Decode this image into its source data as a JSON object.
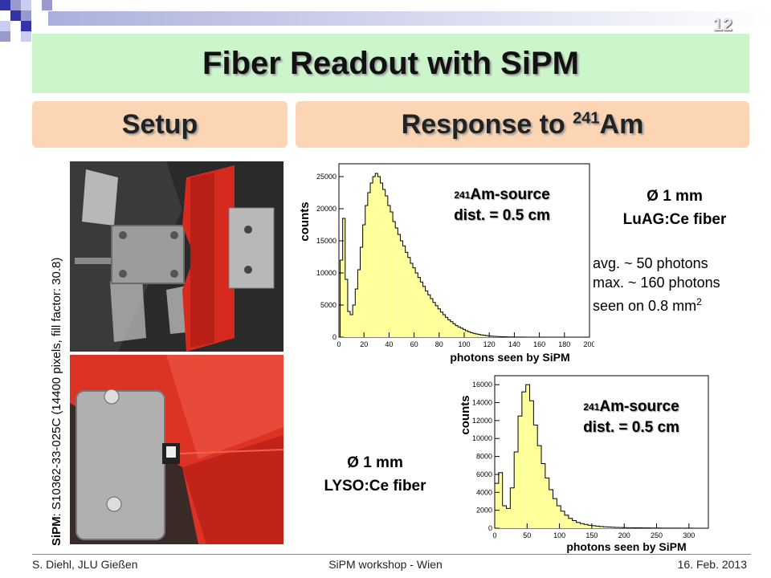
{
  "slide_number": "12",
  "title": "Fiber Readout with SiPM",
  "setup_header": "Setup",
  "response_header": {
    "prefix": "Response to ",
    "isotope_mass": "241",
    "element": "Am"
  },
  "sipm_label": {
    "bold": "SiPM",
    "rest": ": S10362-33-025C (14400 pixels, fill factor: 30.8)"
  },
  "plot1": {
    "source_mass": "241",
    "source_line": "Am-source",
    "dist_line": "dist. = 0.5 cm",
    "fiber_line1": "Ø 1 mm",
    "fiber_line2": "LuAG:Ce  fiber",
    "info_line1": "avg. ~ 50 photons",
    "info_line2": "max. ~ 160 photons",
    "info_line3_prefix": "seen on 0.8 mm",
    "info_line3_sup": "2"
  },
  "plot2": {
    "source_mass": "241",
    "source_line": "Am-source",
    "dist_line": "dist. = 0.5 cm",
    "fiber_line1": "Ø 1 mm",
    "fiber_line2": "LYSO:Ce  fiber"
  },
  "footer": {
    "left": "S. Diehl, JLU Gießen",
    "center": "SiPM workshop - Wien",
    "right": "16.  Feb. 2013"
  },
  "colors": {
    "title_bg": "#ccf5cc",
    "header_bg": "#fcd5b4",
    "hist_fill": "#ffff99",
    "deco_blue": "#3333aa"
  },
  "chart_data": [
    {
      "type": "bar",
      "ylabel": "counts",
      "xlabel": "photons seen by SiPM",
      "xlim": [
        0,
        200
      ],
      "ylim": [
        0,
        27000
      ],
      "xticks": [
        0,
        20,
        40,
        60,
        80,
        100,
        120,
        140,
        160,
        180,
        200
      ],
      "yticks": [
        0,
        5000,
        10000,
        15000,
        20000,
        25000
      ],
      "x": [
        2,
        4,
        6,
        8,
        10,
        12,
        14,
        16,
        18,
        20,
        22,
        24,
        26,
        28,
        30,
        32,
        34,
        36,
        38,
        40,
        42,
        44,
        46,
        48,
        50,
        52,
        54,
        56,
        58,
        60,
        62,
        64,
        66,
        68,
        70,
        72,
        74,
        76,
        78,
        80,
        82,
        84,
        86,
        88,
        90,
        92,
        94,
        96,
        98,
        100,
        102,
        104,
        106,
        108,
        110,
        112,
        114,
        116,
        118,
        120,
        122,
        124,
        126,
        128,
        130,
        132,
        134,
        136,
        138,
        140,
        142,
        144,
        146,
        148,
        150,
        152,
        154,
        156,
        158,
        160,
        162,
        164,
        166,
        168,
        170,
        172,
        174,
        176,
        178,
        180,
        182,
        184,
        186,
        188,
        190,
        192,
        194,
        196,
        198
      ],
      "values": [
        12000,
        18500,
        9000,
        4000,
        3500,
        5000,
        7500,
        10500,
        14000,
        17500,
        20500,
        22500,
        24000,
        25000,
        25500,
        25000,
        24000,
        23000,
        22000,
        20500,
        19500,
        18000,
        17000,
        16000,
        15000,
        14200,
        13200,
        12400,
        11500,
        10800,
        10000,
        9300,
        8600,
        7900,
        7200,
        6600,
        6000,
        5400,
        4900,
        4400,
        3900,
        3500,
        3100,
        2700,
        2400,
        2100,
        1800,
        1600,
        1400,
        1200,
        1000,
        850,
        700,
        600,
        500,
        420,
        350,
        290,
        240,
        200,
        160,
        130,
        110,
        90,
        70,
        55,
        45,
        35,
        28,
        22,
        17,
        13,
        10,
        8,
        6,
        5,
        4,
        3,
        2,
        2,
        1,
        1,
        1,
        1,
        1,
        0,
        0,
        0,
        0,
        0,
        0,
        0,
        0,
        0,
        0,
        0,
        0,
        0,
        0
      ]
    },
    {
      "type": "bar",
      "ylabel": "counts",
      "xlabel": "photons seen by SiPM",
      "xlim": [
        0,
        330
      ],
      "ylim": [
        0,
        17000
      ],
      "xticks": [
        0,
        50,
        100,
        150,
        200,
        250,
        300
      ],
      "yticks": [
        0,
        2000,
        4000,
        6000,
        8000,
        10000,
        12000,
        14000,
        16000
      ],
      "x": [
        3,
        9,
        15,
        21,
        27,
        33,
        39,
        45,
        51,
        57,
        63,
        69,
        75,
        81,
        87,
        93,
        99,
        105,
        111,
        117,
        123,
        129,
        135,
        141,
        147,
        153,
        159,
        165,
        171,
        177,
        183,
        189,
        195,
        201,
        207,
        213,
        219,
        225,
        231,
        237,
        243,
        249,
        255,
        261,
        267,
        273,
        279,
        285,
        291,
        297,
        303,
        309,
        315,
        321,
        327
      ],
      "values": [
        5000,
        6200,
        2500,
        2200,
        4500,
        8500,
        12500,
        15200,
        16000,
        14200,
        11500,
        9200,
        7200,
        5600,
        4300,
        3300,
        2500,
        1900,
        1450,
        1100,
        850,
        650,
        520,
        420,
        340,
        280,
        230,
        190,
        160,
        130,
        110,
        95,
        80,
        70,
        60,
        52,
        45,
        40,
        35,
        30,
        26,
        22,
        19,
        16,
        14,
        12,
        10,
        9,
        8,
        7,
        6,
        5,
        4,
        3,
        3
      ]
    }
  ]
}
